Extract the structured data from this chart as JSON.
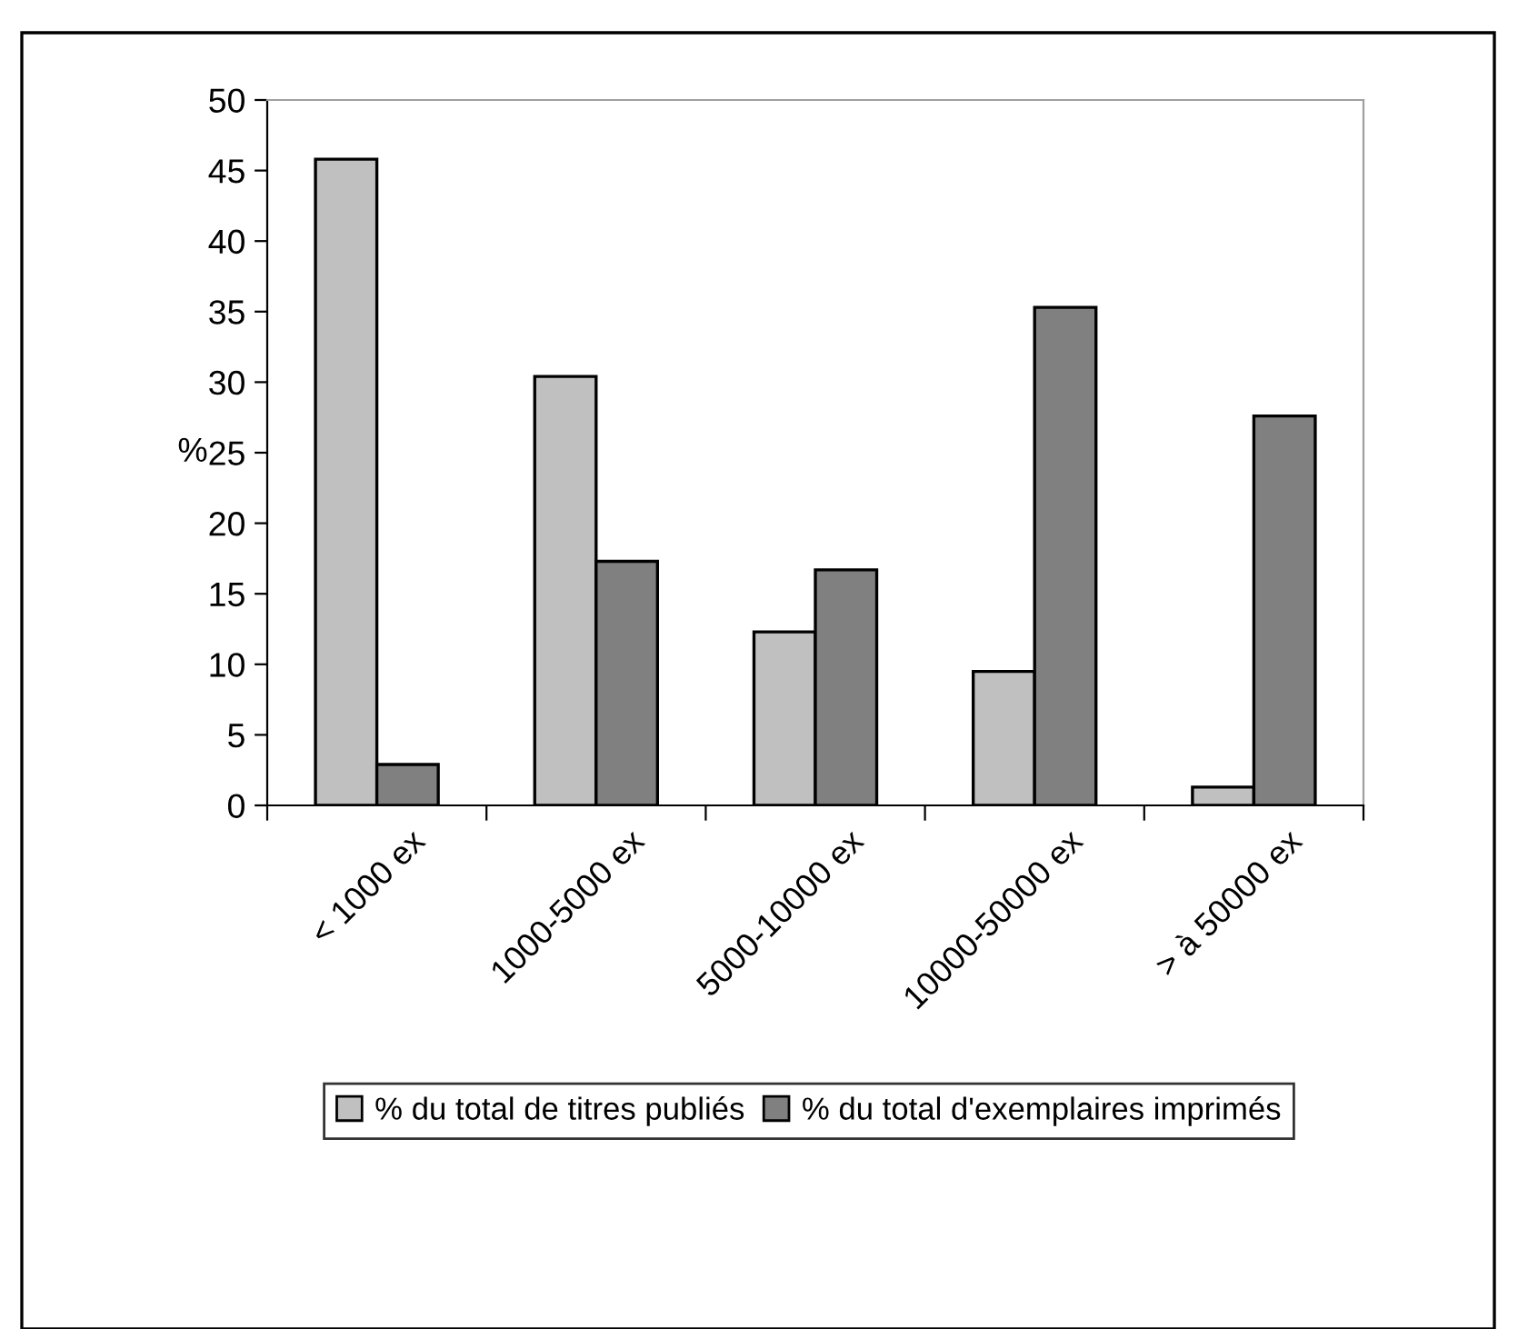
{
  "chart_data": {
    "type": "bar",
    "ylabel": "%",
    "categories": [
      "< 1000 ex",
      "1000-5000 ex",
      "5000-10000 ex",
      "10000-50000 ex",
      "> à 50000 ex"
    ],
    "series": [
      {
        "name": "% du total de titres publiés",
        "color": "#c0c0c0",
        "values": [
          45.8,
          30.4,
          12.3,
          9.5,
          1.3
        ]
      },
      {
        "name": "% du total d'exemplaires imprimés",
        "color": "#808080",
        "values": [
          2.9,
          17.3,
          16.7,
          35.3,
          27.6
        ]
      }
    ],
    "ylim": [
      0,
      50
    ],
    "yticks": [
      0,
      5,
      10,
      15,
      20,
      25,
      30,
      35,
      40,
      45,
      50
    ],
    "grid": false,
    "legend": "bottom"
  }
}
